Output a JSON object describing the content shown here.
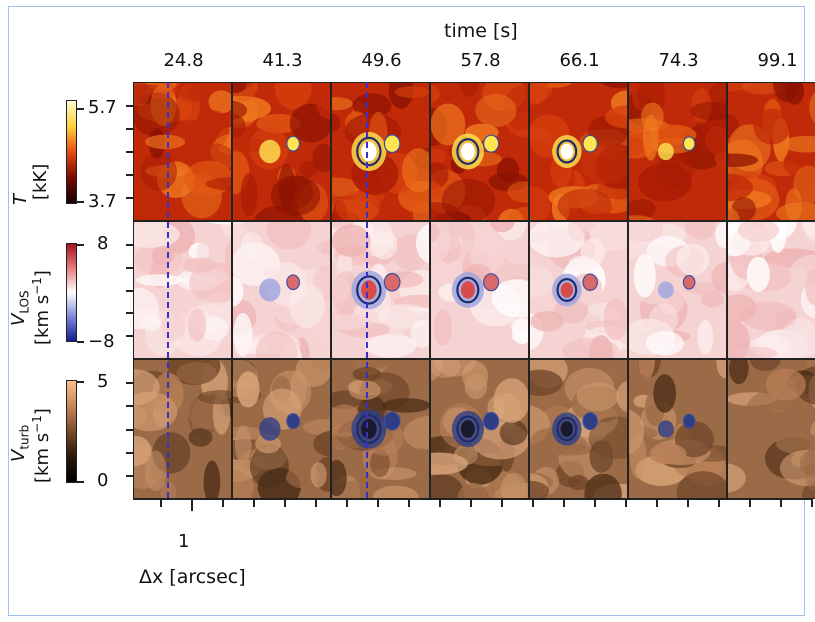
{
  "figure": {
    "axis_top_title": "time [s]",
    "times": [
      "24.8",
      "41.3",
      "49.6",
      "57.8",
      "66.1",
      "74.3",
      "99.1"
    ],
    "x_tick_label": "1",
    "x_axis_label": "Δx [arcsec]"
  },
  "rows": [
    {
      "key": "T",
      "label_line1": "T",
      "label_line2": "[kK]",
      "tick_top": "5.7",
      "tick_bottom": "3.7",
      "colormap": "hot"
    },
    {
      "key": "vlos",
      "label_line1": "V",
      "label_sub": "LOS",
      "label_line2": "[km s",
      "label_sup": "−1",
      "tick_top": "8",
      "tick_bottom": "−8",
      "colormap": "diverging"
    },
    {
      "key": "vturb",
      "label_line1": "V",
      "label_sub": "turb",
      "label_line2": "[km s",
      "label_sup": "−1",
      "tick_top": "5",
      "tick_bottom": "0",
      "colormap": "copper"
    }
  ],
  "colors": {
    "frame_border": "#9ec3ea",
    "dashed_line": "#3b2ec9"
  }
}
